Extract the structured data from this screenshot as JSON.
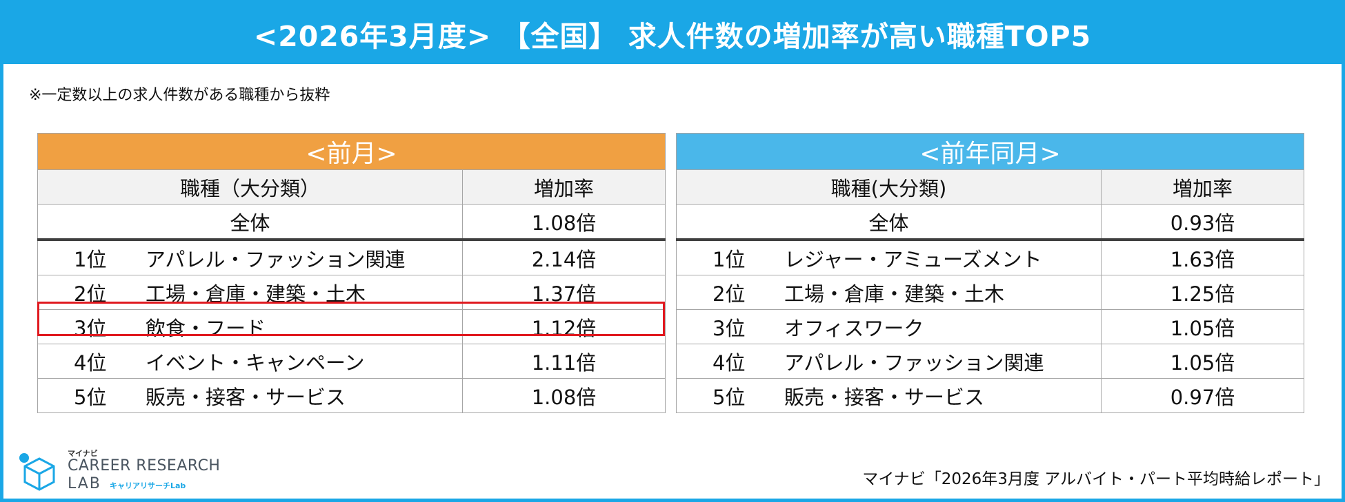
{
  "title": "<2026年3月度> 【全国】 求人件数の増加率が高い職種TOP5",
  "note": "※一定数以上の求人件数がある職種から抜粋",
  "colors": {
    "header": "#1aa7e6",
    "prev_month": "#f0a042",
    "prev_year": "#4ab7ea",
    "highlight": "#e0191f"
  },
  "prev_month": {
    "banner": "<前月>",
    "col_job": "職種（大分類）",
    "col_rate": "増加率",
    "overall": {
      "label": "全体",
      "rate": "1.08倍"
    },
    "rows": [
      {
        "rank": "1位",
        "job": "アパレル・ファッション関連",
        "rate": "2.14倍"
      },
      {
        "rank": "2位",
        "job": "工場・倉庫・建築・土木",
        "rate": "1.37倍"
      },
      {
        "rank": "3位",
        "job": "飲食・フード",
        "rate": "1.12倍"
      },
      {
        "rank": "4位",
        "job": "イベント・キャンペーン",
        "rate": "1.11倍"
      },
      {
        "rank": "5位",
        "job": "販売・接客・サービス",
        "rate": "1.08倍"
      }
    ]
  },
  "prev_year": {
    "banner": "<前年同月>",
    "col_job": "職種(大分類)",
    "col_rate": "増加率",
    "overall": {
      "label": "全体",
      "rate": "0.93倍"
    },
    "rows": [
      {
        "rank": "1位",
        "job": "レジャー・アミューズメント",
        "rate": "1.63倍"
      },
      {
        "rank": "2位",
        "job": "工場・倉庫・建築・土木",
        "rate": "1.25倍"
      },
      {
        "rank": "3位",
        "job": "オフィスワーク",
        "rate": "1.05倍"
      },
      {
        "rank": "4位",
        "job": "アパレル・ファッション関連",
        "rate": "1.05倍"
      },
      {
        "rank": "5位",
        "job": "販売・接客・サービス",
        "rate": "0.97倍"
      }
    ]
  },
  "logo": {
    "brand": "マイナビ",
    "line1": "CAREER RESEARCH",
    "line2": "LAB",
    "kana": "キャリアリサーチLab",
    "icon": "cube-icon"
  },
  "source": "マイナビ「2026年3月度 アルバイト・パート平均時給レポート」"
}
